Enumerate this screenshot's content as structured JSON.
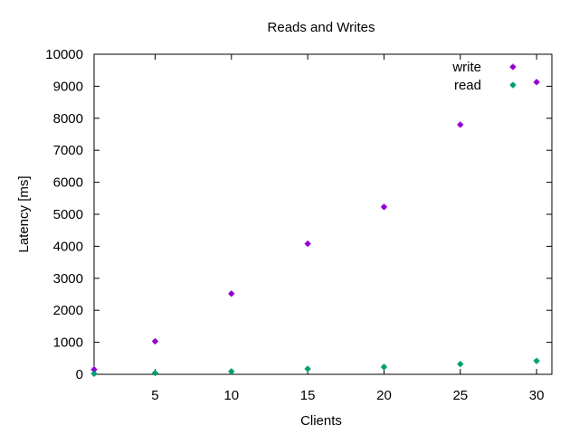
{
  "chart_data": {
    "type": "scatter",
    "title": "Reads and Writes",
    "xlabel": "Clients",
    "ylabel": "Latency [ms]",
    "xlim": [
      1,
      31
    ],
    "ylim": [
      0,
      10000
    ],
    "x_ticks": [
      5,
      10,
      15,
      20,
      25,
      30
    ],
    "y_ticks": [
      0,
      1000,
      2000,
      3000,
      4000,
      5000,
      6000,
      7000,
      8000,
      9000,
      10000
    ],
    "legend_position": "top-right",
    "grid": false,
    "series": [
      {
        "name": "write",
        "color": "#9400d3",
        "x": [
          1,
          5,
          10,
          15,
          20,
          25,
          30
        ],
        "y": [
          150,
          1030,
          2520,
          4080,
          5230,
          7800,
          9130
        ]
      },
      {
        "name": "read",
        "color": "#009e73",
        "x": [
          1,
          5,
          10,
          15,
          20,
          25,
          30
        ],
        "y": [
          20,
          40,
          90,
          170,
          230,
          320,
          420
        ]
      }
    ]
  }
}
